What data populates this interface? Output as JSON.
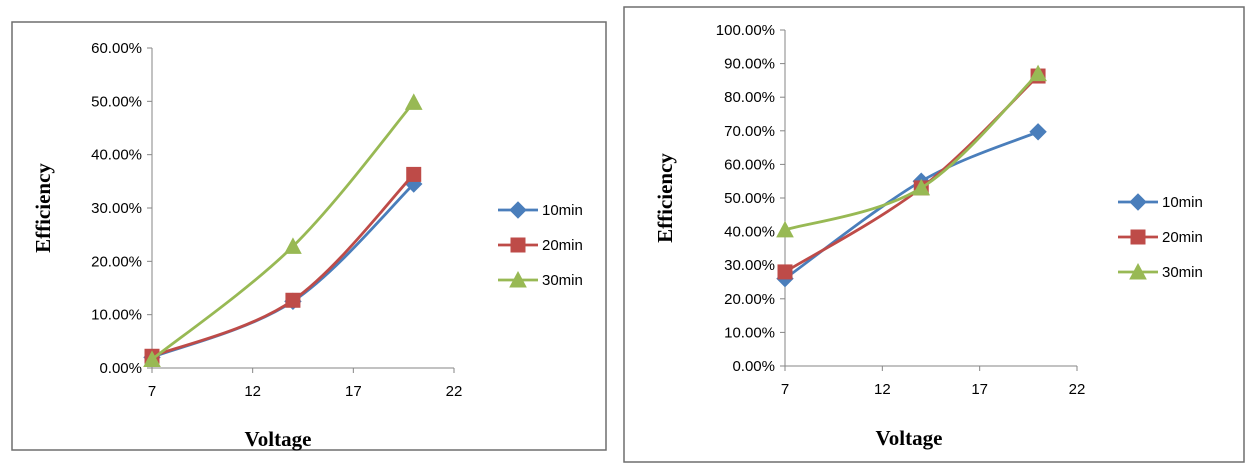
{
  "chart_data": [
    {
      "type": "line",
      "xlabel": "Voltage",
      "ylabel": "Efficiency",
      "xlim": [
        7,
        22
      ],
      "xticks": [
        "7",
        "12",
        "17",
        "22"
      ],
      "ylim": [
        0,
        60
      ],
      "yticks": [
        "0.00%",
        "10.00%",
        "20.00%",
        "30.00%",
        "40.00%",
        "50.00%",
        "60.00%"
      ],
      "x": [
        7,
        14,
        20
      ],
      "legend_position": "right",
      "grid": false,
      "series": [
        {
          "name": "10min",
          "color": "#4a7ebb",
          "marker": "diamond",
          "values": [
            2.0,
            12.5,
            34.5
          ]
        },
        {
          "name": "20min",
          "color": "#be4b48",
          "marker": "square",
          "values": [
            2.2,
            12.7,
            36.3
          ]
        },
        {
          "name": "30min",
          "color": "#98b954",
          "marker": "triangle",
          "values": [
            1.6,
            22.8,
            49.8
          ]
        }
      ]
    },
    {
      "type": "line",
      "xlabel": "Voltage",
      "ylabel": "Efficiency",
      "xlim": [
        7,
        22
      ],
      "xticks": [
        "7",
        "12",
        "17",
        "22"
      ],
      "ylim": [
        0,
        100
      ],
      "yticks": [
        "0.00%",
        "10.00%",
        "20.00%",
        "30.00%",
        "40.00%",
        "50.00%",
        "60.00%",
        "70.00%",
        "80.00%",
        "90.00%",
        "100.00%"
      ],
      "x": [
        7,
        14,
        20
      ],
      "legend_position": "right",
      "grid": false,
      "series": [
        {
          "name": "10min",
          "color": "#4a7ebb",
          "marker": "diamond",
          "values": [
            26.0,
            55.0,
            69.7
          ]
        },
        {
          "name": "20min",
          "color": "#be4b48",
          "marker": "square",
          "values": [
            28.0,
            53.0,
            86.3
          ]
        },
        {
          "name": "30min",
          "color": "#98b954",
          "marker": "triangle",
          "values": [
            40.5,
            53.0,
            87.0
          ]
        }
      ]
    }
  ]
}
